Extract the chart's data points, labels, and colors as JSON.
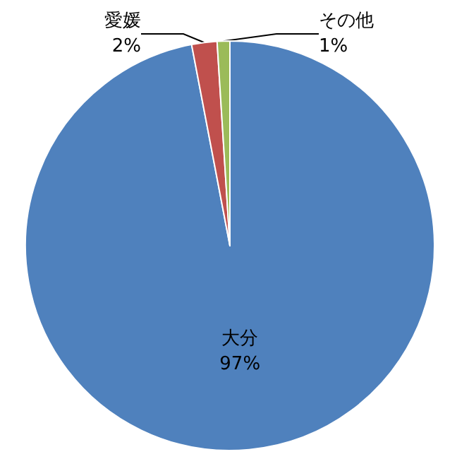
{
  "chart_data": {
    "type": "pie",
    "categories": [
      "大分",
      "愛媛",
      "その他"
    ],
    "values": [
      97,
      2,
      1
    ],
    "colors": [
      "#4f81bd",
      "#c0504d",
      "#9bbb59"
    ],
    "value_labels": [
      "97%",
      "2%",
      "1%"
    ],
    "legend": false
  }
}
